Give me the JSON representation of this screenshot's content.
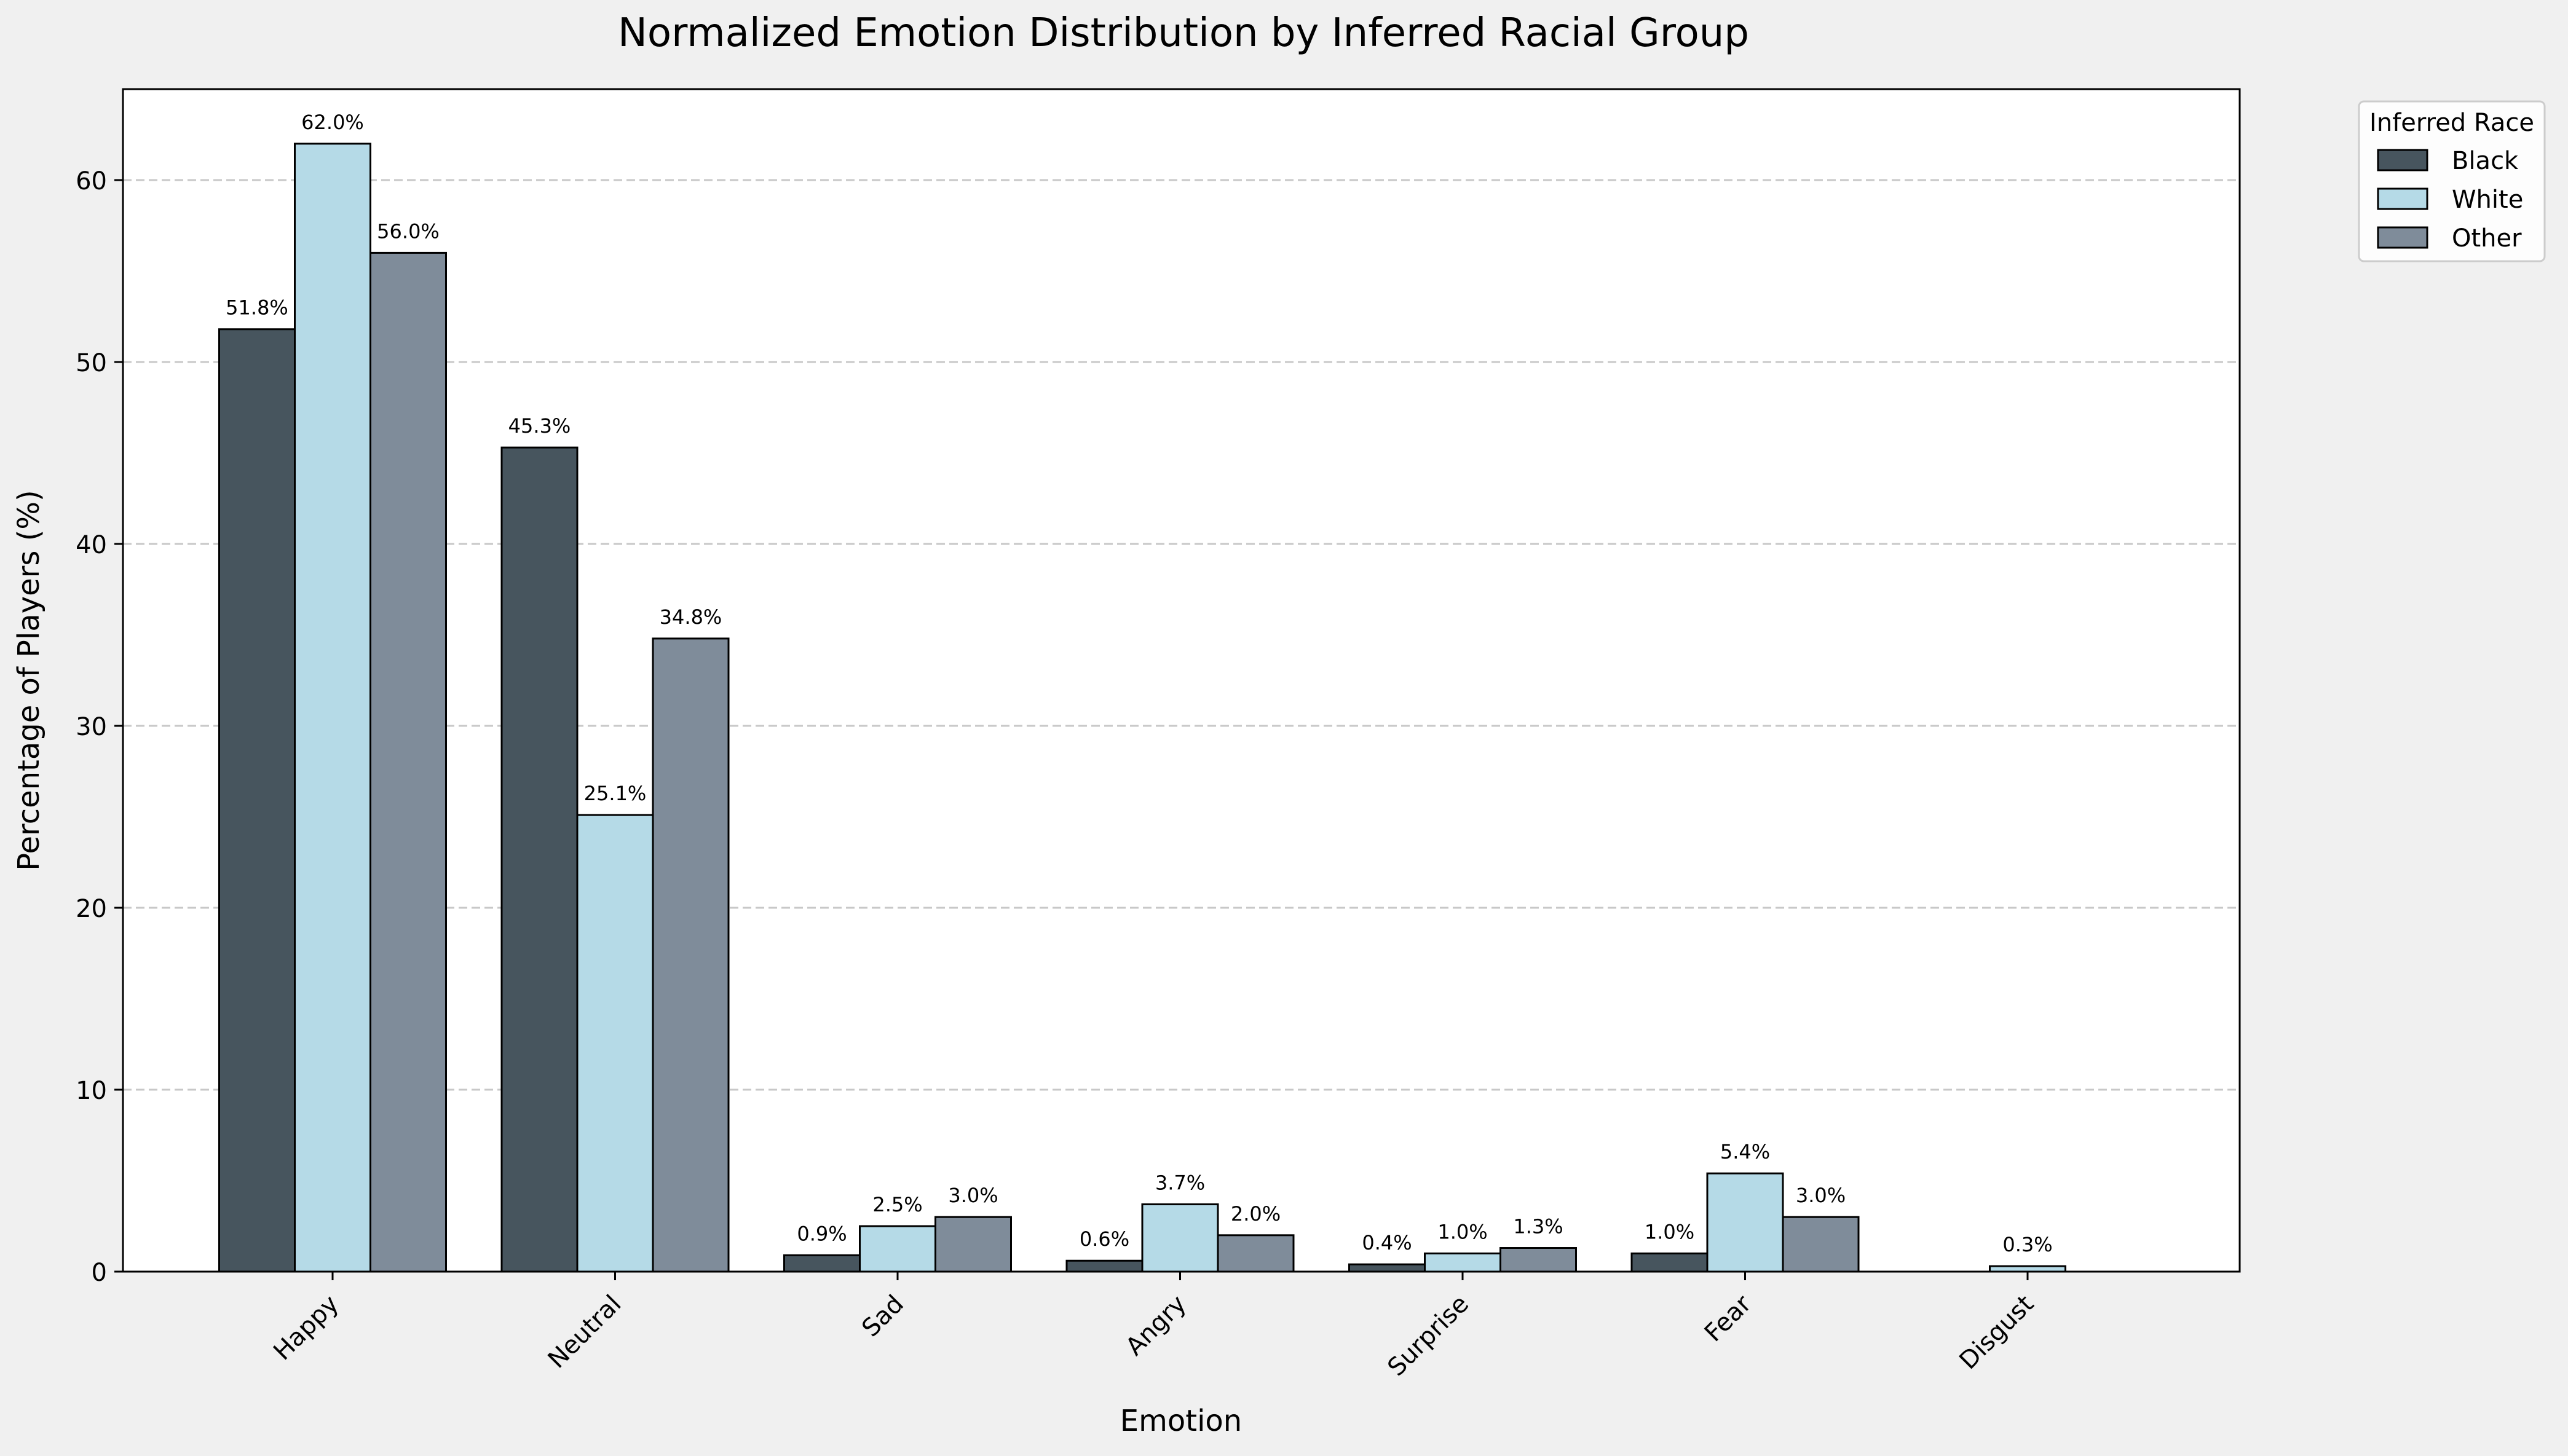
{
  "chart_data": {
    "type": "bar",
    "title": "Normalized Emotion Distribution by Inferred Racial Group",
    "xlabel": "Emotion",
    "ylabel": "Percentage of Players (%)",
    "ylim": [
      0,
      65
    ],
    "yticks": [
      0,
      10,
      20,
      30,
      40,
      50,
      60
    ],
    "grid": "y-dashed",
    "categories": [
      "Happy",
      "Neutral",
      "Sad",
      "Angry",
      "Surprise",
      "Fear",
      "Disgust"
    ],
    "legend": {
      "title": "Inferred Race",
      "position": "outside-top-right"
    },
    "series": [
      {
        "name": "Black",
        "color": "#47555e",
        "values": [
          51.8,
          45.3,
          0.9,
          0.6,
          0.4,
          1.0,
          0.0
        ],
        "labels": [
          "51.8%",
          "45.3%",
          "0.9%",
          "0.6%",
          "0.4%",
          "1.0%",
          ""
        ]
      },
      {
        "name": "White",
        "color": "#b5dae7",
        "values": [
          62.0,
          25.1,
          2.5,
          3.7,
          1.0,
          5.4,
          0.3
        ],
        "labels": [
          "62.0%",
          "25.1%",
          "2.5%",
          "3.7%",
          "1.0%",
          "5.4%",
          "0.3%"
        ]
      },
      {
        "name": "Other",
        "color": "#7f8c9a",
        "values": [
          56.0,
          34.8,
          3.0,
          2.0,
          1.3,
          3.0,
          0.0
        ],
        "labels": [
          "56.0%",
          "34.8%",
          "3.0%",
          "2.0%",
          "1.3%",
          "3.0%",
          ""
        ]
      }
    ]
  }
}
